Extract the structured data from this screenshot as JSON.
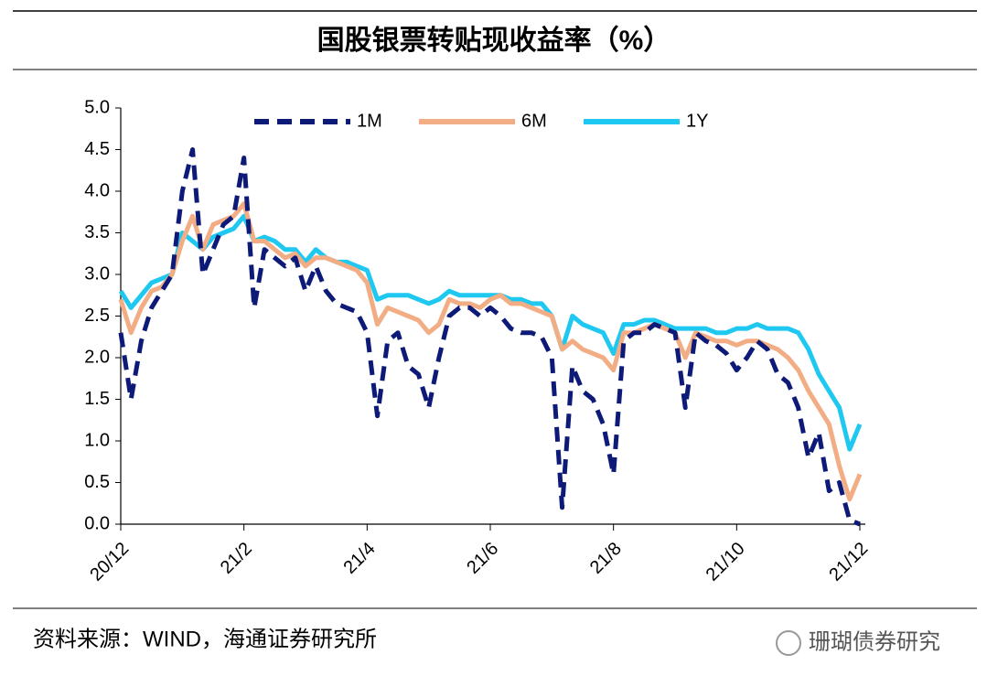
{
  "chart_data": {
    "type": "line",
    "title": "国股银票转贴现收益率（%）",
    "categories": [
      "20/12",
      null,
      null,
      null,
      null,
      null,
      null,
      null,
      null,
      null,
      null,
      null,
      "21/2",
      null,
      null,
      null,
      null,
      null,
      null,
      null,
      null,
      null,
      null,
      null,
      "21/4",
      null,
      null,
      null,
      null,
      null,
      null,
      null,
      null,
      null,
      null,
      null,
      "21/6",
      null,
      null,
      null,
      null,
      null,
      null,
      null,
      null,
      null,
      null,
      null,
      "21/8",
      null,
      null,
      null,
      null,
      null,
      null,
      null,
      null,
      null,
      null,
      null,
      "21/10",
      null,
      null,
      null,
      null,
      null,
      null,
      null,
      null,
      null,
      null,
      null,
      "21/12"
    ],
    "series": [
      {
        "name": "1M",
        "color": "#0d1a78",
        "line_style": "dashed",
        "values": [
          2.3,
          1.5,
          2.2,
          2.6,
          2.8,
          3.0,
          4.0,
          4.5,
          3.0,
          3.3,
          3.6,
          3.7,
          4.4,
          2.6,
          3.3,
          3.2,
          3.1,
          3.2,
          2.8,
          3.1,
          2.8,
          2.65,
          2.6,
          2.55,
          2.3,
          1.3,
          2.2,
          2.3,
          1.9,
          1.8,
          1.4,
          2.0,
          2.5,
          2.6,
          2.6,
          2.5,
          2.6,
          2.5,
          2.35,
          2.3,
          2.3,
          2.25,
          2.0,
          0.2,
          1.9,
          1.6,
          1.5,
          1.2,
          0.6,
          2.2,
          2.3,
          2.3,
          2.4,
          2.35,
          2.3,
          1.4,
          2.3,
          2.2,
          2.15,
          2.05,
          1.85,
          2.0,
          2.2,
          2.1,
          1.8,
          1.7,
          1.4,
          0.8,
          1.1,
          0.4,
          0.5,
          0.05,
          0.0
        ]
      },
      {
        "name": "6M",
        "color": "#f2ad84",
        "line_style": "solid",
        "values": [
          2.7,
          2.3,
          2.6,
          2.8,
          2.85,
          3.0,
          3.4,
          3.7,
          3.3,
          3.6,
          3.65,
          3.7,
          3.85,
          3.4,
          3.4,
          3.3,
          3.2,
          3.25,
          3.1,
          3.2,
          3.2,
          3.15,
          3.1,
          3.05,
          2.9,
          2.4,
          2.6,
          2.55,
          2.5,
          2.45,
          2.3,
          2.4,
          2.7,
          2.65,
          2.65,
          2.6,
          2.7,
          2.75,
          2.65,
          2.65,
          2.6,
          2.55,
          2.5,
          2.1,
          2.2,
          2.1,
          2.05,
          2.0,
          1.85,
          2.3,
          2.3,
          2.35,
          2.4,
          2.35,
          2.3,
          2.0,
          2.3,
          2.25,
          2.2,
          2.2,
          2.15,
          2.2,
          2.2,
          2.15,
          2.1,
          2.0,
          1.85,
          1.6,
          1.4,
          1.2,
          0.7,
          0.3,
          0.6
        ]
      },
      {
        "name": "1Y",
        "color": "#1ec8f0",
        "line_style": "solid",
        "values": [
          2.8,
          2.6,
          2.75,
          2.9,
          2.95,
          3.0,
          3.5,
          3.4,
          3.3,
          3.45,
          3.5,
          3.55,
          3.7,
          3.4,
          3.45,
          3.4,
          3.3,
          3.3,
          3.15,
          3.3,
          3.2,
          3.15,
          3.15,
          3.1,
          3.05,
          2.7,
          2.75,
          2.75,
          2.75,
          2.7,
          2.65,
          2.7,
          2.8,
          2.75,
          2.75,
          2.75,
          2.75,
          2.75,
          2.7,
          2.7,
          2.65,
          2.65,
          2.5,
          2.1,
          2.5,
          2.4,
          2.35,
          2.3,
          2.05,
          2.4,
          2.4,
          2.45,
          2.45,
          2.4,
          2.35,
          2.35,
          2.35,
          2.35,
          2.3,
          2.3,
          2.35,
          2.35,
          2.4,
          2.35,
          2.35,
          2.35,
          2.3,
          2.1,
          1.8,
          1.6,
          1.4,
          0.9,
          1.2
        ]
      }
    ],
    "ylim": [
      0,
      5
    ],
    "yticks": [
      {
        "value": 0,
        "label": "0.0"
      },
      {
        "value": 0.5,
        "label": "0.5"
      },
      {
        "value": 1,
        "label": "1.0"
      },
      {
        "value": 1.5,
        "label": "1.5"
      },
      {
        "value": 2,
        "label": "2.0"
      },
      {
        "value": 2.5,
        "label": "2.5"
      },
      {
        "value": 3,
        "label": "3.0"
      },
      {
        "value": 3.5,
        "label": "3.5"
      },
      {
        "value": 4,
        "label": "4.0"
      },
      {
        "value": 4.5,
        "label": "4.5"
      },
      {
        "value": 5,
        "label": "5.0"
      }
    ],
    "grid": false,
    "legend": "top",
    "source": "资料来源：WIND，海通证券研究所",
    "watermark": "珊瑚债券研究"
  }
}
